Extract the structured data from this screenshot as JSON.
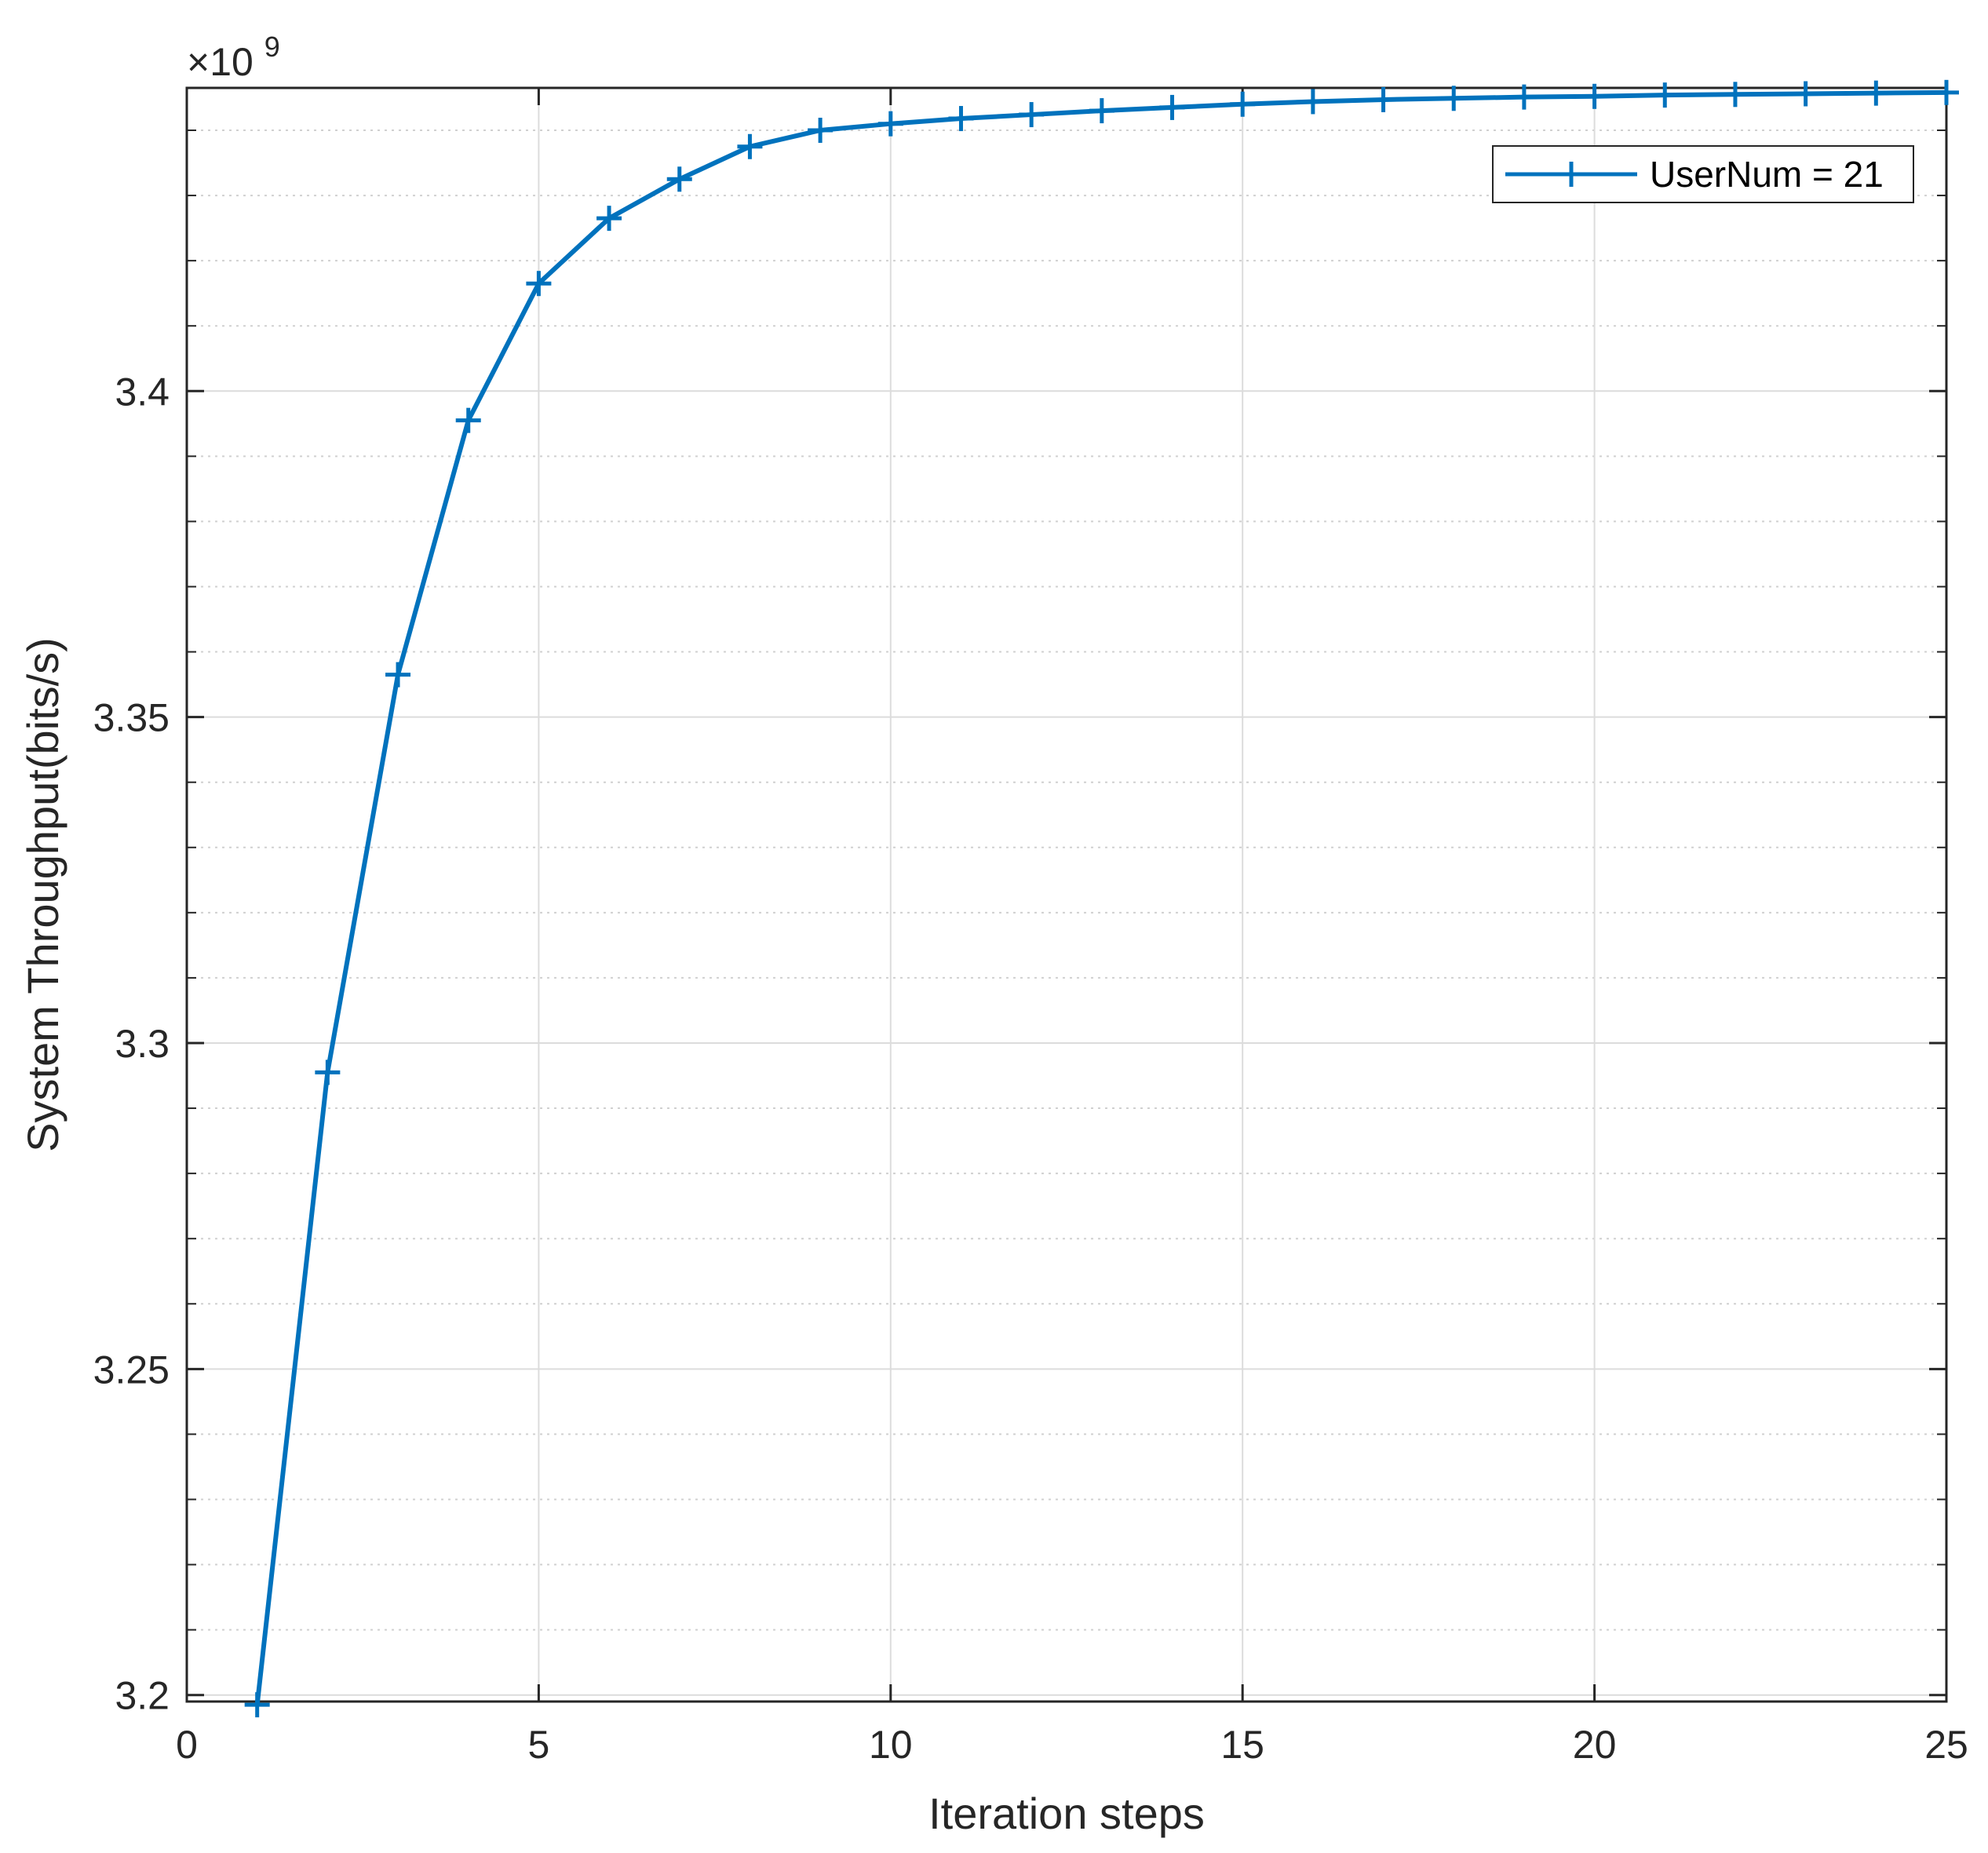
{
  "chart_data": {
    "type": "line",
    "xlabel": "Iteration steps",
    "ylabel": "System Throughput(bits/s)",
    "y_exponent_label": "×10",
    "y_exponent_power": "9",
    "xlim": [
      0,
      25
    ],
    "ylim": [
      3.199,
      3.4465
    ],
    "xticks": [
      0,
      5,
      10,
      15,
      20,
      25
    ],
    "xtick_labels": [
      "0",
      "5",
      "10",
      "15",
      "20",
      "25"
    ],
    "yticks": [
      3.2,
      3.25,
      3.3,
      3.35,
      3.4
    ],
    "ytick_labels": [
      "3.2",
      "3.25",
      "3.3",
      "3.35",
      "3.4"
    ],
    "y_minor_step": 0.01,
    "grid": true,
    "legend_position": "top-right",
    "series": [
      {
        "name": "UserNum = 21",
        "color": "#0072BD",
        "marker": "plus",
        "x": [
          1,
          2,
          3,
          4,
          5,
          6,
          7,
          8,
          9,
          10,
          11,
          12,
          13,
          14,
          15,
          16,
          17,
          18,
          19,
          20,
          21,
          22,
          23,
          24,
          25
        ],
        "y": [
          3.1985,
          3.2955,
          3.3565,
          3.3955,
          3.4165,
          3.4265,
          3.4325,
          3.4375,
          3.44,
          3.441,
          3.4418,
          3.4424,
          3.443,
          3.4435,
          3.444,
          3.4444,
          3.4447,
          3.4449,
          3.4451,
          3.4452,
          3.4454,
          3.4455,
          3.4456,
          3.4457,
          3.4458
        ]
      }
    ]
  }
}
